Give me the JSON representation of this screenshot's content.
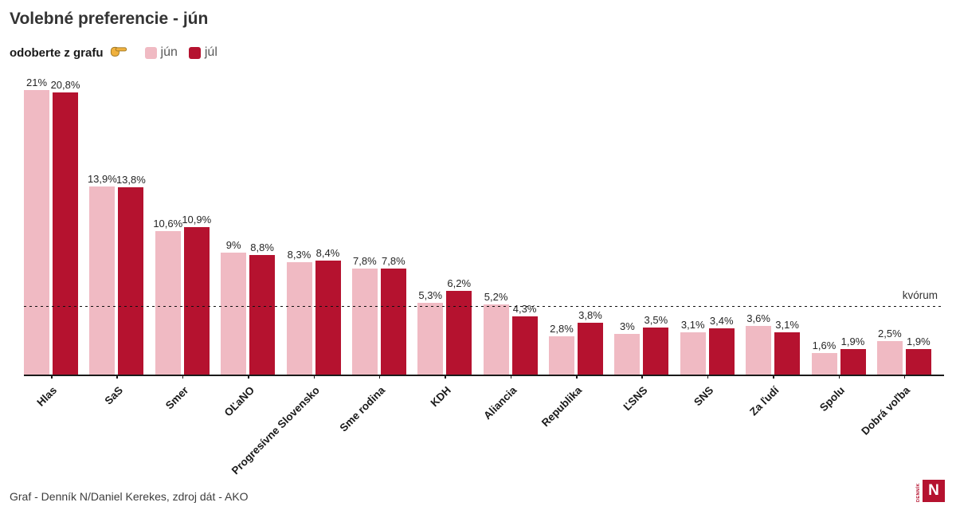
{
  "title": "Volebné preferencie - jún",
  "subtitle": {
    "label": "odoberte z grafu",
    "icon": "pointing-hand-icon"
  },
  "legend": [
    {
      "label": "jún",
      "color": "#f0bac3"
    },
    {
      "label": "júl",
      "color": "#b5122f"
    }
  ],
  "chart_data": {
    "type": "bar",
    "title": "Volebné preferencie - jún",
    "categories": [
      "Hlas",
      "SaS",
      "Smer",
      "OĽaNO",
      "Progresívne Slovensko",
      "Sme rodina",
      "KDH",
      "Aliancia",
      "Republika",
      "ĽSNS",
      "SNS",
      "Za ľudí",
      "Spolu",
      "Dobrá voľba"
    ],
    "series": [
      {
        "name": "jún",
        "color": "#f0bac3",
        "values": [
          21,
          13.9,
          10.6,
          9,
          8.3,
          7.8,
          5.3,
          5.2,
          2.8,
          3,
          3.1,
          3.6,
          1.6,
          2.5
        ],
        "labels": [
          "21%",
          "13,9%",
          "10,6%",
          "9%",
          "8,3%",
          "7,8%",
          "5,3%",
          "5,2%",
          "2,8%",
          "3%",
          "3,1%",
          "3,6%",
          "1,6%",
          "2,5%"
        ]
      },
      {
        "name": "júl",
        "color": "#b5122f",
        "values": [
          20.8,
          13.8,
          10.9,
          8.8,
          8.4,
          7.8,
          6.2,
          4.3,
          3.8,
          3.5,
          3.4,
          3.1,
          1.9,
          1.9
        ],
        "labels": [
          "20,8%",
          "13,8%",
          "10,9%",
          "8,8%",
          "8,4%",
          "7,8%",
          "6,2%",
          "4,3%",
          "3,8%",
          "3,5%",
          "3,4%",
          "3,1%",
          "1,9%",
          "1,9%"
        ]
      }
    ],
    "quorum": {
      "value": 5,
      "label": "kvórum"
    },
    "xlabel": "",
    "ylabel": "",
    "ylim": [
      0,
      21
    ],
    "grid": false,
    "legend_position": "top-left"
  },
  "footer": {
    "credit": "Graf - Denník N/Daniel Kerekes, zdroj dát - AKO"
  },
  "logo": {
    "vertical_text": "DENNÍK",
    "letter": "N",
    "color": "#b5122f"
  }
}
